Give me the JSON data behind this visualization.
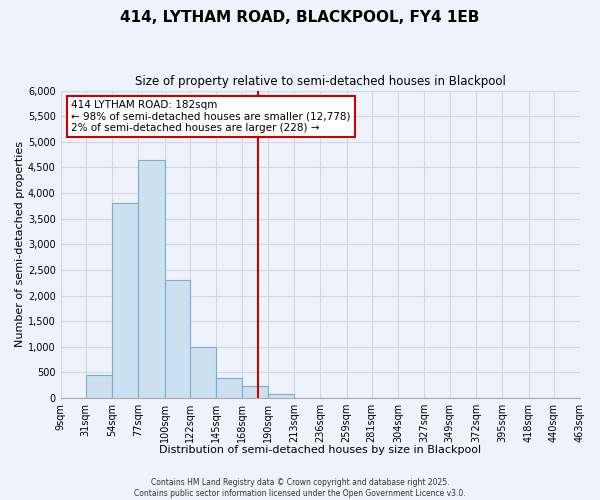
{
  "title": "414, LYTHAM ROAD, BLACKPOOL, FY4 1EB",
  "subtitle": "Size of property relative to semi-detached houses in Blackpool",
  "xlabel": "Distribution of semi-detached houses by size in Blackpool",
  "ylabel": "Number of semi-detached properties",
  "bin_edges": [
    9,
    31,
    54,
    77,
    100,
    122,
    145,
    168,
    190,
    213,
    236,
    259,
    281,
    304,
    327,
    349,
    372,
    395,
    418,
    440,
    463
  ],
  "bin_labels": [
    "9sqm",
    "31sqm",
    "54sqm",
    "77sqm",
    "100sqm",
    "122sqm",
    "145sqm",
    "168sqm",
    "190sqm",
    "213sqm",
    "236sqm",
    "259sqm",
    "281sqm",
    "304sqm",
    "327sqm",
    "349sqm",
    "372sqm",
    "395sqm",
    "418sqm",
    "440sqm",
    "463sqm"
  ],
  "counts": [
    0,
    450,
    3800,
    4650,
    2300,
    1000,
    390,
    230,
    80,
    0,
    0,
    0,
    0,
    0,
    0,
    0,
    0,
    0,
    0,
    0
  ],
  "bar_color": "#cce0f0",
  "bar_edge_color": "#7aadd4",
  "vline_x": 182,
  "vline_color": "#cc0000",
  "annotation_title": "414 LYTHAM ROAD: 182sqm",
  "annotation_line1": "← 98% of semi-detached houses are smaller (12,778)",
  "annotation_line2": "2% of semi-detached houses are larger (228) →",
  "annotation_box_color": "#ffffff",
  "annotation_box_edge": "#cc0000",
  "ylim": [
    0,
    6000
  ],
  "yticks": [
    0,
    500,
    1000,
    1500,
    2000,
    2500,
    3000,
    3500,
    4000,
    4500,
    5000,
    5500,
    6000
  ],
  "grid_color": "#d0d8e8",
  "background_color": "#eef2fa",
  "footer1": "Contains HM Land Registry data © Crown copyright and database right 2025.",
  "footer2": "Contains public sector information licensed under the Open Government Licence v3.0."
}
